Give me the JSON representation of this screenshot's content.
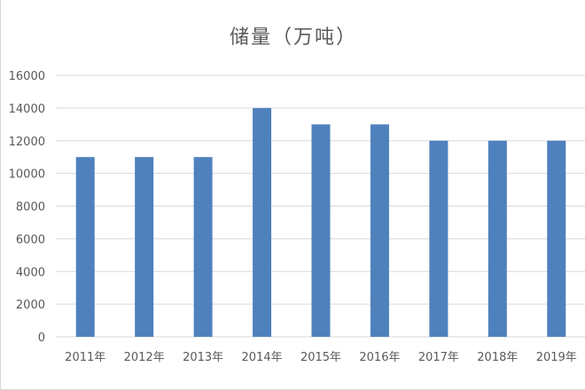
{
  "chart_data": {
    "type": "bar",
    "title": "储量（万吨）",
    "xlabel": "",
    "ylabel": "",
    "categories": [
      "2011年",
      "2012年",
      "2013年",
      "2014年",
      "2015年",
      "2016年",
      "2017年",
      "2018年",
      "2019年"
    ],
    "values": [
      11000,
      11000,
      11000,
      14000,
      13000,
      13000,
      12000,
      12000,
      12000
    ],
    "ylim": [
      0,
      16000
    ],
    "yticks": [
      "0",
      "2000",
      "4000",
      "6000",
      "8000",
      "10000",
      "12000",
      "14000",
      "16000"
    ],
    "grid": true,
    "legend": "none",
    "bar_color": "#4f81bd",
    "grid_color": "#d9d9d9"
  }
}
